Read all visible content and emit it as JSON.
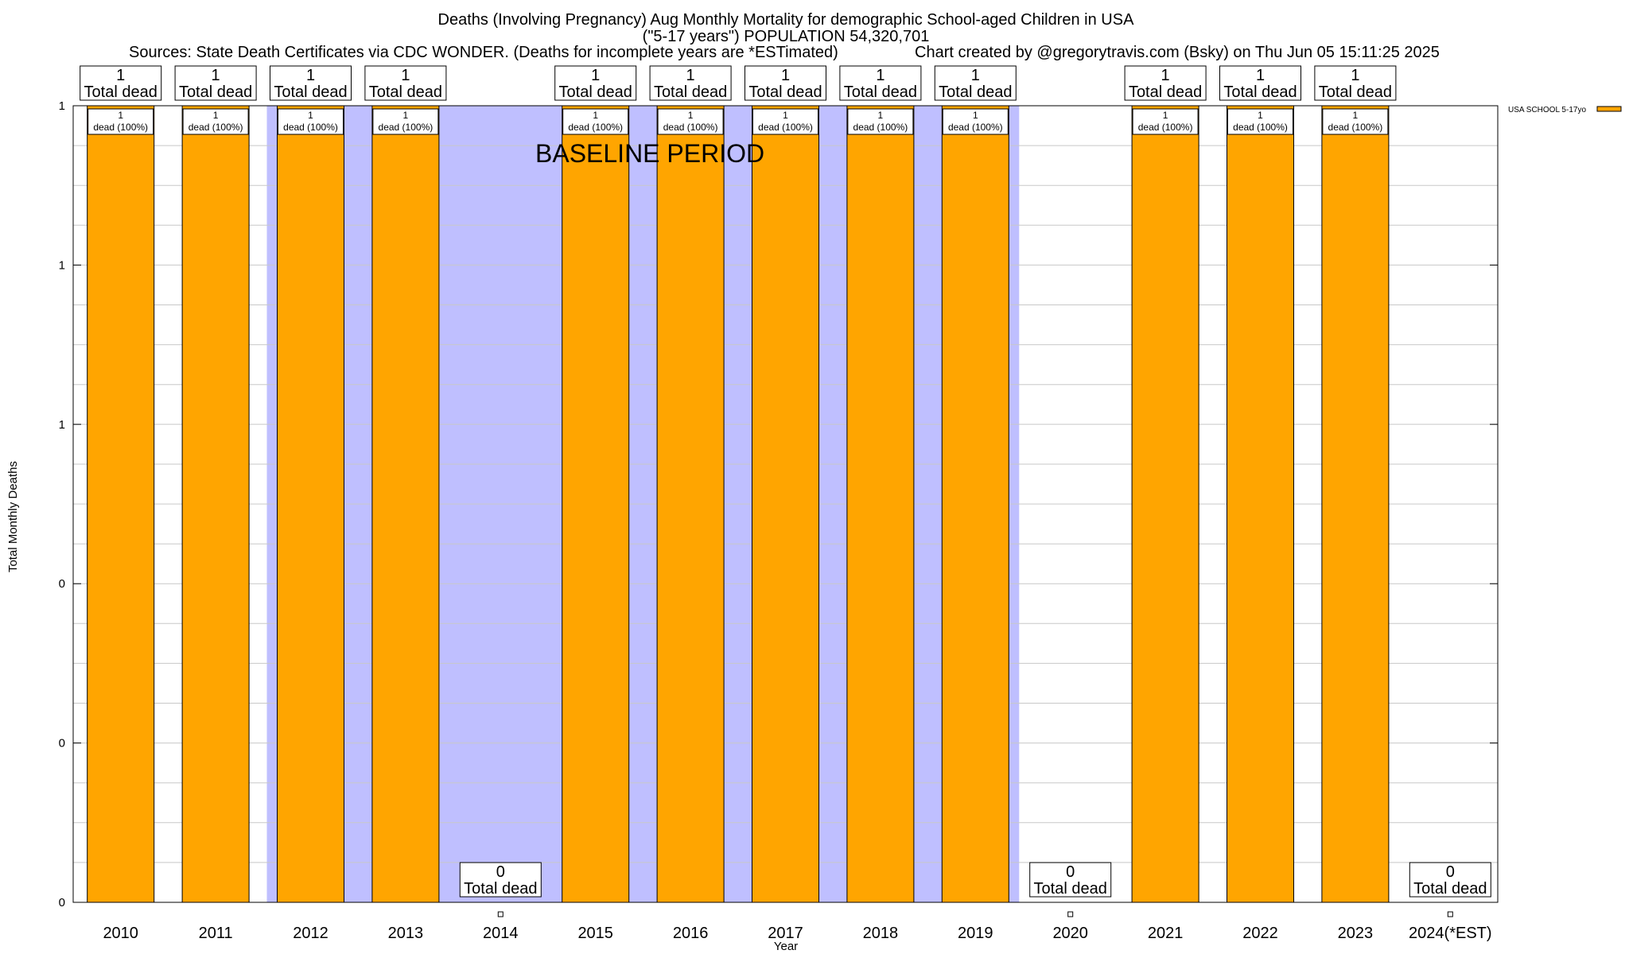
{
  "title_lines": [
    "Deaths (Involving Pregnancy) Aug Monthly Mortality for demographic School-aged Children in USA",
    "(\"5-17 years\") POPULATION 54,320,701"
  ],
  "sources": "Sources: State Death Certificates via CDC WONDER. (Deaths for incomplete years are *ESTimated)",
  "credit": "Chart created by @gregorytravis.com (Bsky) on Thu Jun 05 15:11:25 2025",
  "baseline_label": "BASELINE PERIOD",
  "legend": {
    "label": "USA SCHOOL 5-17yo"
  },
  "colors": {
    "bar": "#FFA500",
    "baseline": "#BFBFFF",
    "grid": "#C8C8C8"
  },
  "chart_data": {
    "type": "bar",
    "title": "Deaths (Involving Pregnancy) Aug Monthly Mortality for demographic School-aged Children in USA",
    "xlabel": "Year",
    "ylabel": "Total Monthly Deaths",
    "categories": [
      "2010",
      "2011",
      "2012",
      "2013",
      "2014",
      "2015",
      "2016",
      "2017",
      "2018",
      "2019",
      "2020",
      "2021",
      "2022",
      "2023",
      "2024(*EST)"
    ],
    "series": [
      {
        "name": "USA SCHOOL 5-17yo",
        "values": [
          1,
          1,
          1,
          1,
          0,
          1,
          1,
          1,
          1,
          1,
          0,
          1,
          1,
          1,
          0
        ]
      }
    ],
    "ylim": [
      0,
      1
    ],
    "ytick_values": [
      0,
      0.2,
      0.4,
      0.6,
      0.8,
      1
    ],
    "ytick_labels": [
      "0",
      "0",
      "0",
      "1",
      "1",
      "1"
    ],
    "grid": true,
    "baseline_period": [
      "2012",
      "2019"
    ],
    "legend_position": "top-right",
    "total_labels": [
      "1",
      "1",
      "1",
      "1",
      "0",
      "1",
      "1",
      "1",
      "1",
      "1",
      "0",
      "1",
      "1",
      "1",
      "0"
    ],
    "total_suffix": "Total dead",
    "bar_labels": [
      "1",
      "1",
      "1",
      "1",
      "",
      "1",
      "1",
      "1",
      "1",
      "1",
      "",
      "1",
      "1",
      "1",
      ""
    ],
    "bar_sublabels": [
      "dead (100%)",
      "dead (100%)",
      "dead (100%)",
      "dead (100%)",
      "",
      "dead (100%)",
      "dead (100%)",
      "dead (100%)",
      "dead (100%)",
      "dead (100%)",
      "",
      "dead (100%)",
      "dead (100%)",
      "dead (100%)",
      ""
    ]
  }
}
